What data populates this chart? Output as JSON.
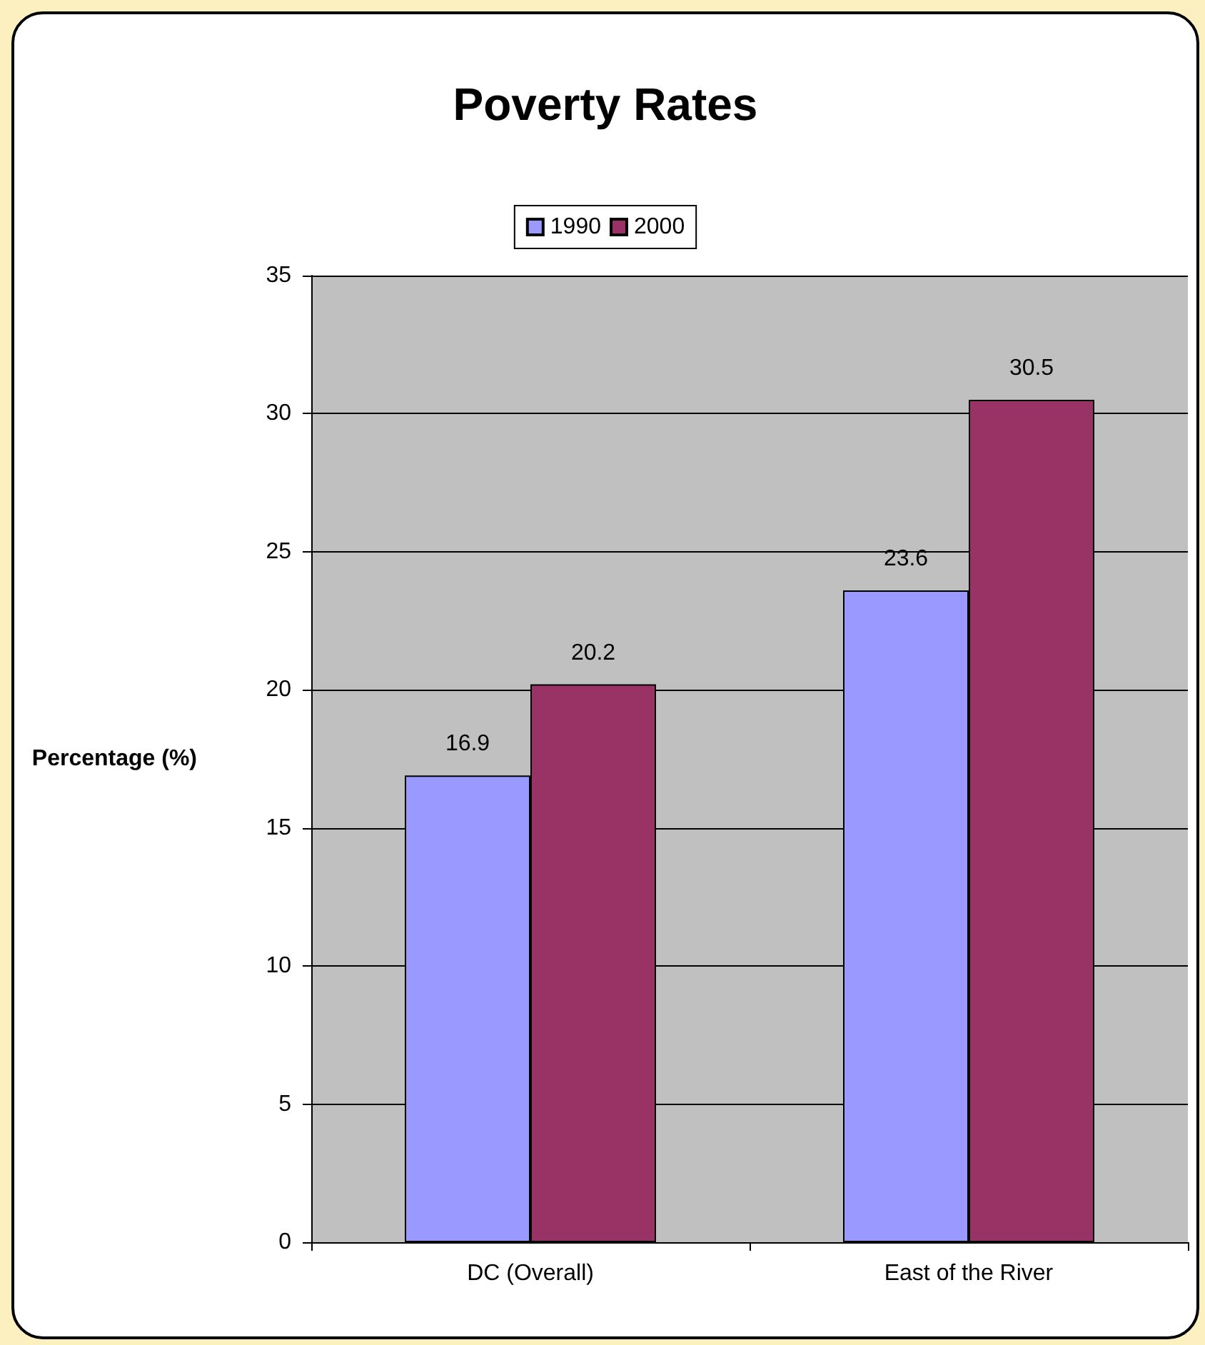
{
  "chart_data": {
    "type": "bar",
    "title": "Poverty Rates",
    "ylabel": "Percentage (%)",
    "categories": [
      "DC (Overall)",
      "East of the River"
    ],
    "series": [
      {
        "name": "1990",
        "color": "#9999ff",
        "values": [
          16.9,
          23.6
        ]
      },
      {
        "name": "2000",
        "color": "#993366",
        "values": [
          20.2,
          30.5
        ]
      }
    ],
    "ylim": [
      0,
      35
    ],
    "yticks": [
      0,
      5,
      10,
      15,
      20,
      25,
      30,
      35
    ],
    "grid": "y",
    "legend": "top",
    "data_labels": true
  }
}
